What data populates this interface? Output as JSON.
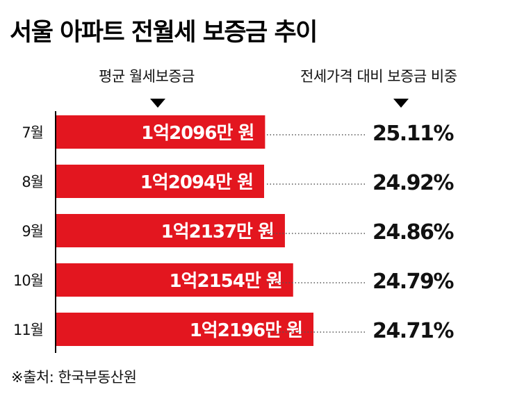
{
  "title": "서울 아파트 전월세 보증금 추이",
  "columns": {
    "left_header": "평균 월세보증금",
    "right_header": "전세가격 대비 보증금 비중"
  },
  "source": "※출처: 한국부동산원",
  "colors": {
    "bar": "#e3161f",
    "text": "#111111"
  },
  "chart_data": {
    "type": "bar",
    "orientation": "horizontal",
    "categories": [
      "7월",
      "8월",
      "9월",
      "10월",
      "11월"
    ],
    "series": [
      {
        "values": [
          12096,
          12094,
          12137,
          12154,
          12196
        ],
        "labels": [
          "1억2096만 원",
          "1억2094만 원",
          "1억2137만 원",
          "1억2154만 원",
          "1억2196만 원"
        ]
      },
      {
        "values": [
          25.11,
          24.92,
          24.86,
          24.79,
          24.71
        ],
        "labels": [
          "25.11%",
          "24.92%",
          "24.86%",
          "24.79%",
          "24.71%"
        ]
      }
    ],
    "title": "서울 아파트 전월세 보증금 추이",
    "xlabel": "",
    "ylabel": ""
  }
}
